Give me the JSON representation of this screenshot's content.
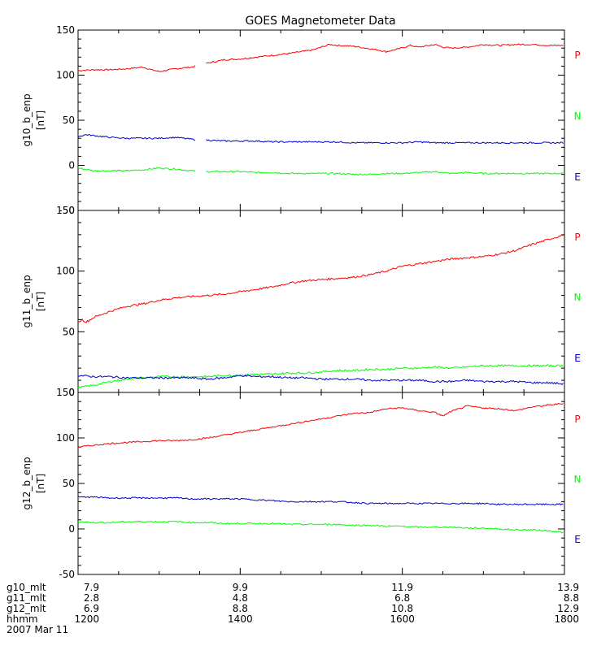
{
  "chart_data": {
    "type": "line",
    "title": "GOES Magnetometer Data",
    "date_label": "2007 Mar 11",
    "x_rows": [
      {
        "label": "g10_mlt",
        "values": [
          "7.9",
          "9.9",
          "11.9",
          "13.9"
        ]
      },
      {
        "label": "g11_mlt",
        "values": [
          "2.8",
          "4.8",
          "6.8",
          "8.8"
        ]
      },
      {
        "label": "g12_mlt",
        "values": [
          "6.9",
          "8.8",
          "10.8",
          "12.9"
        ]
      },
      {
        "label": "hhmm",
        "values": [
          "1200",
          "1400",
          "1600",
          "1800"
        ]
      }
    ],
    "x_range": [
      1200,
      1800
    ],
    "x_ticks": [
      1200,
      1400,
      1600,
      1800
    ],
    "colors": {
      "P": "#ff0000",
      "N": "#00ff00",
      "E": "#0000cc"
    },
    "panels": [
      {
        "ylabel": "g10_b_enp",
        "unit": "[nT]",
        "ylim": [
          -50,
          150
        ],
        "yticks": [
          -50,
          0,
          50,
          100,
          150
        ],
        "gap": [
          1345,
          1358
        ],
        "series": [
          {
            "name": "P",
            "x": [
              1200,
              1220,
              1240,
              1260,
              1280,
              1290,
              1300,
              1320,
              1340,
              1358,
              1380,
              1400,
              1420,
              1440,
              1460,
              1475,
              1490,
              1510,
              1520,
              1540,
              1555,
              1570,
              1580,
              1595,
              1610,
              1620,
              1640,
              1650,
              1660,
              1680,
              1700,
              1720,
              1740,
              1760,
              1780,
              1800
            ],
            "values": [
              105,
              106,
              106,
              107,
              109,
              106,
              104,
              107,
              109,
              113,
              117,
              118,
              120,
              122,
              124,
              126,
              128,
              134,
              133,
              132,
              130,
              128,
              126,
              129,
              133,
              131,
              134,
              131,
              130,
              131,
              134,
              133,
              134,
              134,
              133,
              133
            ]
          },
          {
            "name": "N",
            "x": [
              1200,
              1220,
              1240,
              1260,
              1280,
              1300,
              1320,
              1340,
              1358,
              1380,
              1400,
              1420,
              1440,
              1460,
              1480,
              1500,
              1520,
              1540,
              1560,
              1580,
              1600,
              1620,
              1640,
              1660,
              1680,
              1700,
              1720,
              1740,
              1760,
              1780,
              1800
            ],
            "values": [
              -3,
              -6,
              -6,
              -6,
              -5,
              -3,
              -4,
              -6,
              -7,
              -7,
              -7,
              -8,
              -8,
              -9,
              -9,
              -9,
              -9,
              -10,
              -10,
              -9,
              -9,
              -8,
              -7,
              -9,
              -8,
              -9,
              -9,
              -9,
              -9,
              -9,
              -9
            ]
          },
          {
            "name": "E",
            "x": [
              1200,
              1210,
              1220,
              1240,
              1260,
              1280,
              1300,
              1320,
              1340,
              1358,
              1380,
              1400,
              1420,
              1440,
              1460,
              1480,
              1500,
              1520,
              1540,
              1560,
              1580,
              1600,
              1620,
              1640,
              1660,
              1680,
              1700,
              1720,
              1740,
              1760,
              1780,
              1800
            ],
            "values": [
              32,
              34,
              33,
              31,
              30,
              30,
              30,
              31,
              29,
              28,
              27,
              27,
              27,
              26,
              26,
              26,
              26,
              26,
              25,
              25,
              25,
              25,
              26,
              25,
              25,
              25,
              25,
              25,
              25,
              25,
              25,
              25
            ]
          }
        ]
      },
      {
        "ylabel": "g11_b_enp",
        "unit": "[nT]",
        "ylim": [
          0,
          150
        ],
        "yticks": [
          0,
          50,
          100,
          150
        ],
        "gap": null,
        "series": [
          {
            "name": "P",
            "x": [
              1200,
              1205,
              1210,
              1220,
              1240,
              1260,
              1280,
              1300,
              1320,
              1340,
              1360,
              1380,
              1400,
              1420,
              1440,
              1460,
              1480,
              1500,
              1520,
              1540,
              1560,
              1580,
              1600,
              1620,
              1640,
              1660,
              1680,
              1700,
              1720,
              1740,
              1760,
              1780,
              1800
            ],
            "values": [
              58,
              60,
              58,
              62,
              67,
              71,
              73,
              76,
              78,
              79,
              80,
              81,
              83,
              85,
              87,
              90,
              92,
              93,
              94,
              95,
              97,
              100,
              104,
              106,
              108,
              110,
              111,
              112,
              114,
              117,
              122,
              126,
              130
            ]
          },
          {
            "name": "N",
            "x": [
              1200,
              1220,
              1240,
              1260,
              1280,
              1300,
              1320,
              1340,
              1360,
              1380,
              1400,
              1420,
              1440,
              1460,
              1480,
              1500,
              1520,
              1540,
              1560,
              1580,
              1600,
              1620,
              1640,
              1660,
              1680,
              1700,
              1720,
              1740,
              1760,
              1780,
              1800
            ],
            "values": [
              4,
              6,
              9,
              11,
              12,
              13,
              13,
              13,
              13,
              14,
              14,
              15,
              15,
              16,
              16,
              17,
              18,
              18,
              19,
              19,
              20,
              20,
              21,
              20,
              21,
              22,
              22,
              22,
              22,
              22,
              22
            ]
          },
          {
            "name": "E",
            "x": [
              1200,
              1220,
              1240,
              1260,
              1280,
              1300,
              1320,
              1340,
              1360,
              1380,
              1400,
              1420,
              1440,
              1460,
              1480,
              1500,
              1520,
              1540,
              1560,
              1580,
              1600,
              1620,
              1640,
              1660,
              1680,
              1700,
              1720,
              1740,
              1760,
              1780,
              1800
            ],
            "values": [
              14,
              13,
              13,
              12,
              12,
              12,
              12,
              12,
              11,
              12,
              14,
              13,
              13,
              12,
              12,
              11,
              11,
              11,
              10,
              10,
              10,
              10,
              9,
              9,
              10,
              9,
              9,
              9,
              8,
              8,
              7
            ]
          }
        ]
      },
      {
        "ylabel": "g12_b_enp",
        "unit": "[nT]",
        "ylim": [
          -50,
          150
        ],
        "yticks": [
          -50,
          0,
          50,
          100,
          150
        ],
        "gap": null,
        "series": [
          {
            "name": "P",
            "x": [
              1200,
              1220,
              1240,
              1260,
              1280,
              1300,
              1320,
              1340,
              1360,
              1380,
              1400,
              1420,
              1440,
              1460,
              1480,
              1500,
              1520,
              1540,
              1560,
              1580,
              1600,
              1620,
              1640,
              1650,
              1660,
              1680,
              1700,
              1720,
              1740,
              1760,
              1780,
              1800
            ],
            "values": [
              90,
              92,
              94,
              95,
              96,
              97,
              97,
              98,
              100,
              103,
              106,
              109,
              112,
              115,
              118,
              121,
              124,
              127,
              128,
              132,
              133,
              130,
              128,
              124,
              129,
              135,
              133,
              132,
              130,
              134,
              136,
              138
            ]
          },
          {
            "name": "N",
            "x": [
              1200,
              1220,
              1240,
              1260,
              1280,
              1300,
              1320,
              1340,
              1360,
              1380,
              1400,
              1420,
              1440,
              1460,
              1480,
              1500,
              1520,
              1540,
              1560,
              1580,
              1600,
              1620,
              1640,
              1660,
              1680,
              1700,
              1720,
              1740,
              1760,
              1780,
              1800
            ],
            "values": [
              8,
              7,
              7,
              8,
              8,
              8,
              8,
              7,
              7,
              6,
              6,
              6,
              6,
              5,
              5,
              5,
              5,
              4,
              4,
              3,
              3,
              2,
              2,
              2,
              1,
              1,
              0,
              -1,
              -1,
              -2,
              -4
            ]
          },
          {
            "name": "E",
            "x": [
              1200,
              1220,
              1240,
              1260,
              1280,
              1300,
              1320,
              1340,
              1360,
              1380,
              1400,
              1420,
              1440,
              1460,
              1480,
              1500,
              1520,
              1540,
              1560,
              1580,
              1600,
              1620,
              1640,
              1660,
              1680,
              1700,
              1720,
              1740,
              1760,
              1780,
              1800
            ],
            "values": [
              35,
              35,
              34,
              34,
              34,
              34,
              34,
              33,
              33,
              33,
              33,
              32,
              31,
              30,
              30,
              30,
              30,
              29,
              28,
              28,
              28,
              28,
              28,
              28,
              28,
              28,
              27,
              27,
              27,
              27,
              27
            ]
          }
        ]
      }
    ]
  }
}
